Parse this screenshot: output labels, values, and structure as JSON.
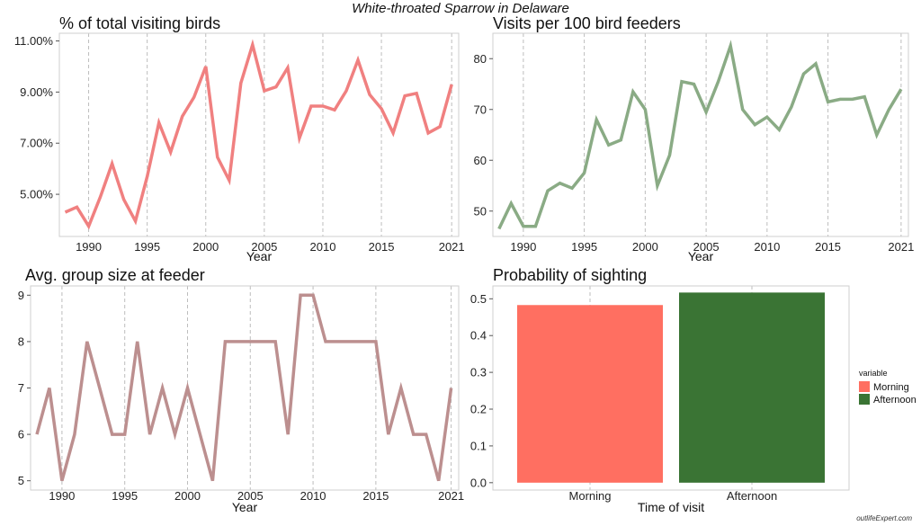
{
  "title": "White-throated Sparrow in Delaware",
  "credit": "outlifeExpert.com",
  "chart_data": [
    {
      "id": "pct",
      "type": "line",
      "title": "% of total visiting birds",
      "xlabel": "Year",
      "ylabel": "",
      "color": "#f08080",
      "x": [
        1988,
        1989,
        1990,
        1991,
        1992,
        1993,
        1994,
        1995,
        1996,
        1997,
        1998,
        1999,
        2000,
        2001,
        2002,
        2003,
        2004,
        2005,
        2006,
        2007,
        2008,
        2009,
        2010,
        2011,
        2012,
        2013,
        2014,
        2015,
        2016,
        2017,
        2018,
        2019,
        2020,
        2021
      ],
      "y": [
        4.3,
        4.5,
        3.75,
        4.9,
        6.2,
        4.8,
        3.95,
        5.7,
        7.8,
        6.65,
        8.05,
        8.8,
        10.0,
        6.45,
        5.55,
        9.35,
        10.85,
        9.05,
        9.2,
        9.95,
        7.2,
        8.45,
        8.45,
        8.3,
        9.05,
        10.25,
        8.9,
        8.35,
        7.4,
        8.85,
        8.95,
        7.4,
        7.65,
        9.3
      ],
      "xlim": [
        1987.5,
        2021.6
      ],
      "ylim": [
        3.35,
        11.3
      ],
      "xticks": [
        1990,
        1995,
        2000,
        2005,
        2010,
        2015,
        2021
      ],
      "xtick_labels": [
        "1990",
        "1995",
        "2000",
        "2005",
        "2010",
        "2015",
        "2021"
      ],
      "yticks": [
        5,
        7,
        9,
        11
      ],
      "ytick_labels": [
        "5.00%",
        "7.00%",
        "9.00%",
        "11.00%"
      ],
      "grid": "vertical-dashed"
    },
    {
      "id": "visits",
      "type": "line",
      "title": "Visits per 100 bird feeders",
      "xlabel": "Year",
      "ylabel": "",
      "color": "#8aab85",
      "x": [
        1988,
        1989,
        1990,
        1991,
        1992,
        1993,
        1994,
        1995,
        1996,
        1997,
        1998,
        1999,
        2000,
        2001,
        2002,
        2003,
        2004,
        2005,
        2006,
        2007,
        2008,
        2009,
        2010,
        2011,
        2012,
        2013,
        2014,
        2015,
        2016,
        2017,
        2018,
        2019,
        2020,
        2021
      ],
      "y": [
        46.5,
        51.5,
        47.0,
        47.0,
        54.0,
        55.5,
        54.5,
        57.5,
        68.0,
        63.0,
        64.0,
        73.5,
        70.0,
        55.0,
        61.0,
        75.5,
        75.0,
        69.5,
        75.5,
        82.5,
        70.0,
        67.0,
        68.5,
        66.0,
        70.5,
        77.0,
        79.0,
        71.5,
        72.0,
        72.0,
        72.5,
        65.0,
        70.0,
        74.0
      ],
      "xlim": [
        1987.5,
        2021.6
      ],
      "ylim": [
        45.0,
        85.0
      ],
      "xticks": [
        1990,
        1995,
        2000,
        2005,
        2010,
        2015,
        2021
      ],
      "xtick_labels": [
        "1990",
        "1995",
        "2000",
        "2005",
        "2010",
        "2015",
        "2021"
      ],
      "yticks": [
        50,
        60,
        70,
        80
      ],
      "ytick_labels": [
        "50",
        "60",
        "70",
        "80"
      ],
      "grid": "vertical-dashed"
    },
    {
      "id": "group",
      "type": "line",
      "title": "Avg. group size at feeder",
      "xlabel": "Year",
      "ylabel": "",
      "color": "#bc8f8f",
      "x": [
        1988,
        1989,
        1990,
        1991,
        1992,
        1993,
        1994,
        1995,
        1996,
        1997,
        1998,
        1999,
        2000,
        2001,
        2002,
        2003,
        2004,
        2005,
        2006,
        2007,
        2008,
        2009,
        2010,
        2011,
        2012,
        2013,
        2014,
        2015,
        2016,
        2017,
        2018,
        2019,
        2020,
        2021
      ],
      "y": [
        6,
        7,
        5,
        6,
        8,
        7,
        6,
        6,
        8,
        6,
        7,
        6,
        7,
        6,
        5,
        8,
        8,
        8,
        8,
        8,
        6,
        9,
        9,
        8,
        8,
        8,
        8,
        8,
        6,
        7,
        6,
        6,
        5,
        7
      ],
      "xlim": [
        1987.5,
        2021.6
      ],
      "ylim": [
        4.8,
        9.2
      ],
      "xticks": [
        1990,
        1995,
        2000,
        2005,
        2010,
        2015,
        2021
      ],
      "xtick_labels": [
        "1990",
        "1995",
        "2000",
        "2005",
        "2010",
        "2015",
        "2021"
      ],
      "yticks": [
        5,
        6,
        7,
        8,
        9
      ],
      "ytick_labels": [
        "5",
        "6",
        "7",
        "8",
        "9"
      ],
      "grid": "vertical-dashed"
    },
    {
      "id": "prob",
      "type": "bar",
      "title": "Probability of sighting",
      "xlabel": "Time of visit",
      "ylabel": "",
      "categories": [
        "Morning",
        "Afternoon"
      ],
      "values": [
        0.483,
        0.517
      ],
      "colors": [
        "#ff6f61",
        "#3a7434"
      ],
      "ylim": [
        -0.02,
        0.535
      ],
      "yticks": [
        0.0,
        0.1,
        0.2,
        0.3,
        0.4,
        0.5
      ],
      "ytick_labels": [
        "0.0",
        "0.1",
        "0.2",
        "0.3",
        "0.4",
        "0.5"
      ],
      "grid": "vertical-dashed",
      "legend": {
        "title": "variable",
        "placement": "right",
        "entries": [
          {
            "label": "Morning",
            "color": "#ff6f61"
          },
          {
            "label": "Afternoon",
            "color": "#3a7434"
          }
        ]
      }
    }
  ]
}
